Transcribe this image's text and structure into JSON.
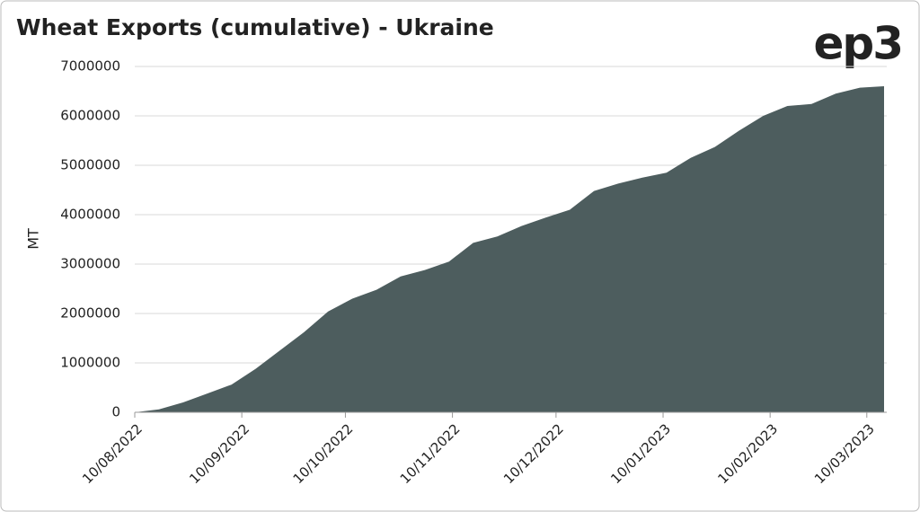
{
  "chart_data": {
    "type": "area",
    "title": "Wheat Exports (cumulative) - Ukraine",
    "logo": "ep3",
    "y_label": "MT",
    "color": "#4d5d5e",
    "grid": true,
    "x": [
      "10/08/2022",
      "17/08/2022",
      "24/08/2022",
      "31/08/2022",
      "07/09/2022",
      "14/09/2022",
      "21/09/2022",
      "28/09/2022",
      "05/10/2022",
      "12/10/2022",
      "19/10/2022",
      "26/10/2022",
      "02/11/2022",
      "09/11/2022",
      "16/11/2022",
      "23/11/2022",
      "30/11/2022",
      "07/12/2022",
      "14/12/2022",
      "21/12/2022",
      "28/12/2022",
      "04/01/2023",
      "11/01/2023",
      "18/01/2023",
      "25/01/2023",
      "01/02/2023",
      "08/02/2023",
      "15/02/2023",
      "22/02/2023",
      "01/03/2023",
      "08/03/2023",
      "15/03/2023"
    ],
    "values": [
      0,
      60000,
      200000,
      380000,
      560000,
      880000,
      1250000,
      1620000,
      2040000,
      2300000,
      2480000,
      2750000,
      2880000,
      3050000,
      3430000,
      3560000,
      3770000,
      3940000,
      4100000,
      4480000,
      4630000,
      4750000,
      4850000,
      5150000,
      5370000,
      5700000,
      6000000,
      6200000,
      6240000,
      6450000,
      6570000,
      6600000
    ],
    "xlim": [
      "10/08/2022",
      "15/03/2023"
    ],
    "xticks": [
      "10/08/2022",
      "10/09/2022",
      "10/10/2022",
      "10/11/2022",
      "10/12/2022",
      "10/01/2023",
      "10/02/2023",
      "10/03/2023"
    ],
    "ylim": [
      0,
      7000000
    ],
    "yticks": [
      0,
      1000000,
      2000000,
      3000000,
      4000000,
      5000000,
      6000000,
      7000000
    ]
  }
}
